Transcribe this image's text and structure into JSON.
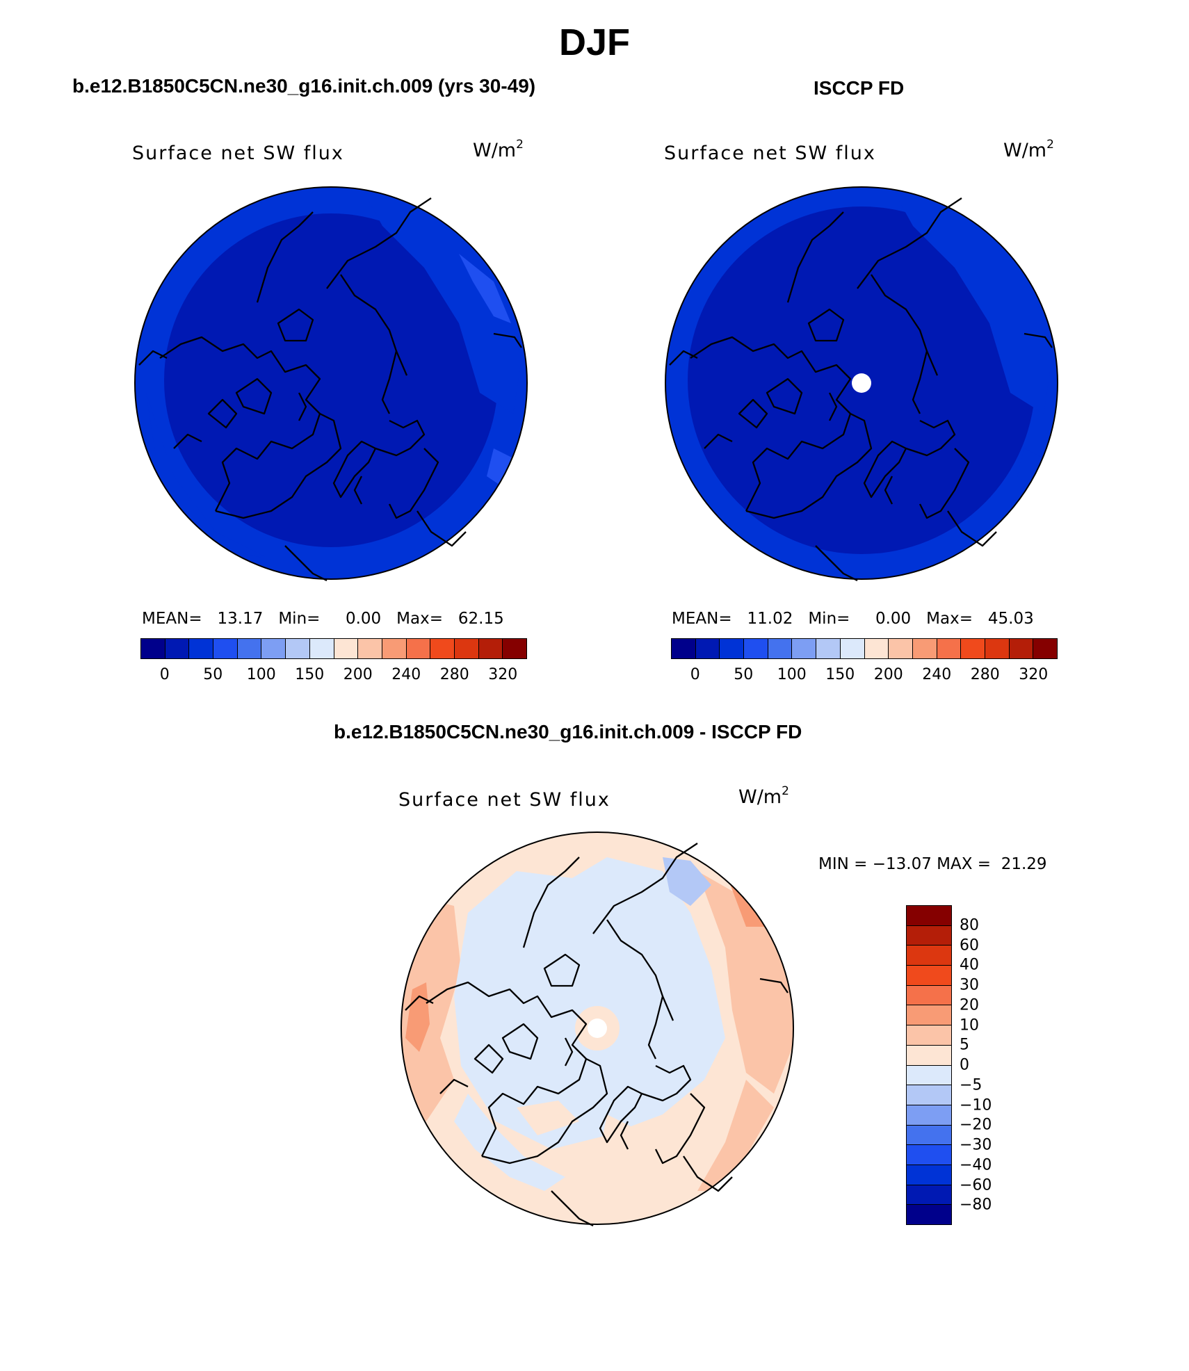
{
  "main_title": "DJF",
  "panels": {
    "left": {
      "title": "b.e12.B1850C5CN.ne30_g16.init.ch.009 (yrs 30-49)",
      "plot_label": "Surface net SW flux",
      "units": "W/m",
      "units_sup": "2",
      "mean_label": "MEAN=",
      "mean_value": "13.17",
      "min_label": "Min=",
      "min_value": "0.00",
      "max_label": "Max=",
      "max_value": "62.15",
      "colorbar_ticks": [
        "0",
        "50",
        "100",
        "150",
        "200",
        "240",
        "280",
        "320"
      ]
    },
    "right": {
      "title": "ISCCP FD",
      "plot_label": "Surface net SW flux",
      "units": "W/m",
      "units_sup": "2",
      "mean_label": "MEAN=",
      "mean_value": "11.02",
      "min_label": "Min=",
      "min_value": "0.00",
      "max_label": "Max=",
      "max_value": "45.03",
      "colorbar_ticks": [
        "0",
        "50",
        "100",
        "150",
        "200",
        "240",
        "280",
        "320"
      ]
    },
    "diff": {
      "title": "b.e12.B1850C5CN.ne30_g16.init.ch.009 - ISCCP FD",
      "plot_label": "Surface net SW flux",
      "units": "W/m",
      "units_sup": "2",
      "minmax_text": "MIN = −13.07 MAX =  21.29",
      "colorbar_ticks": [
        "80",
        "60",
        "40",
        "30",
        "20",
        "10",
        "5",
        "0",
        "−5",
        "−10",
        "−20",
        "−30",
        "−40",
        "−60",
        "−80"
      ]
    }
  },
  "colors": {
    "abs_scale": [
      "#00008b",
      "#0019b3",
      "#0033d6",
      "#1f4ff0",
      "#4472ee",
      "#7d9ef3",
      "#b3c8f6",
      "#dce9fb",
      "#fde5d4",
      "#fbc4a8",
      "#f89b75",
      "#f5714a",
      "#f04a1c",
      "#dc3710",
      "#b41e08",
      "#850000"
    ],
    "diff_scale_top_to_bottom": [
      "#850000",
      "#b41e08",
      "#dc3710",
      "#f04a1c",
      "#f5714a",
      "#f89b75",
      "#fbc4a8",
      "#fde5d4",
      "#dce9fb",
      "#b3c8f6",
      "#7d9ef3",
      "#4472ee",
      "#1f4ff0",
      "#0033d6",
      "#0019b3",
      "#00008b"
    ],
    "map_dark_blue": "#0019b3",
    "map_mid_blue": "#0033d6",
    "diff_light_blue": "#dce9fb",
    "diff_peach": "#fde5d4",
    "diff_salmon": "#fbc4a8"
  }
}
